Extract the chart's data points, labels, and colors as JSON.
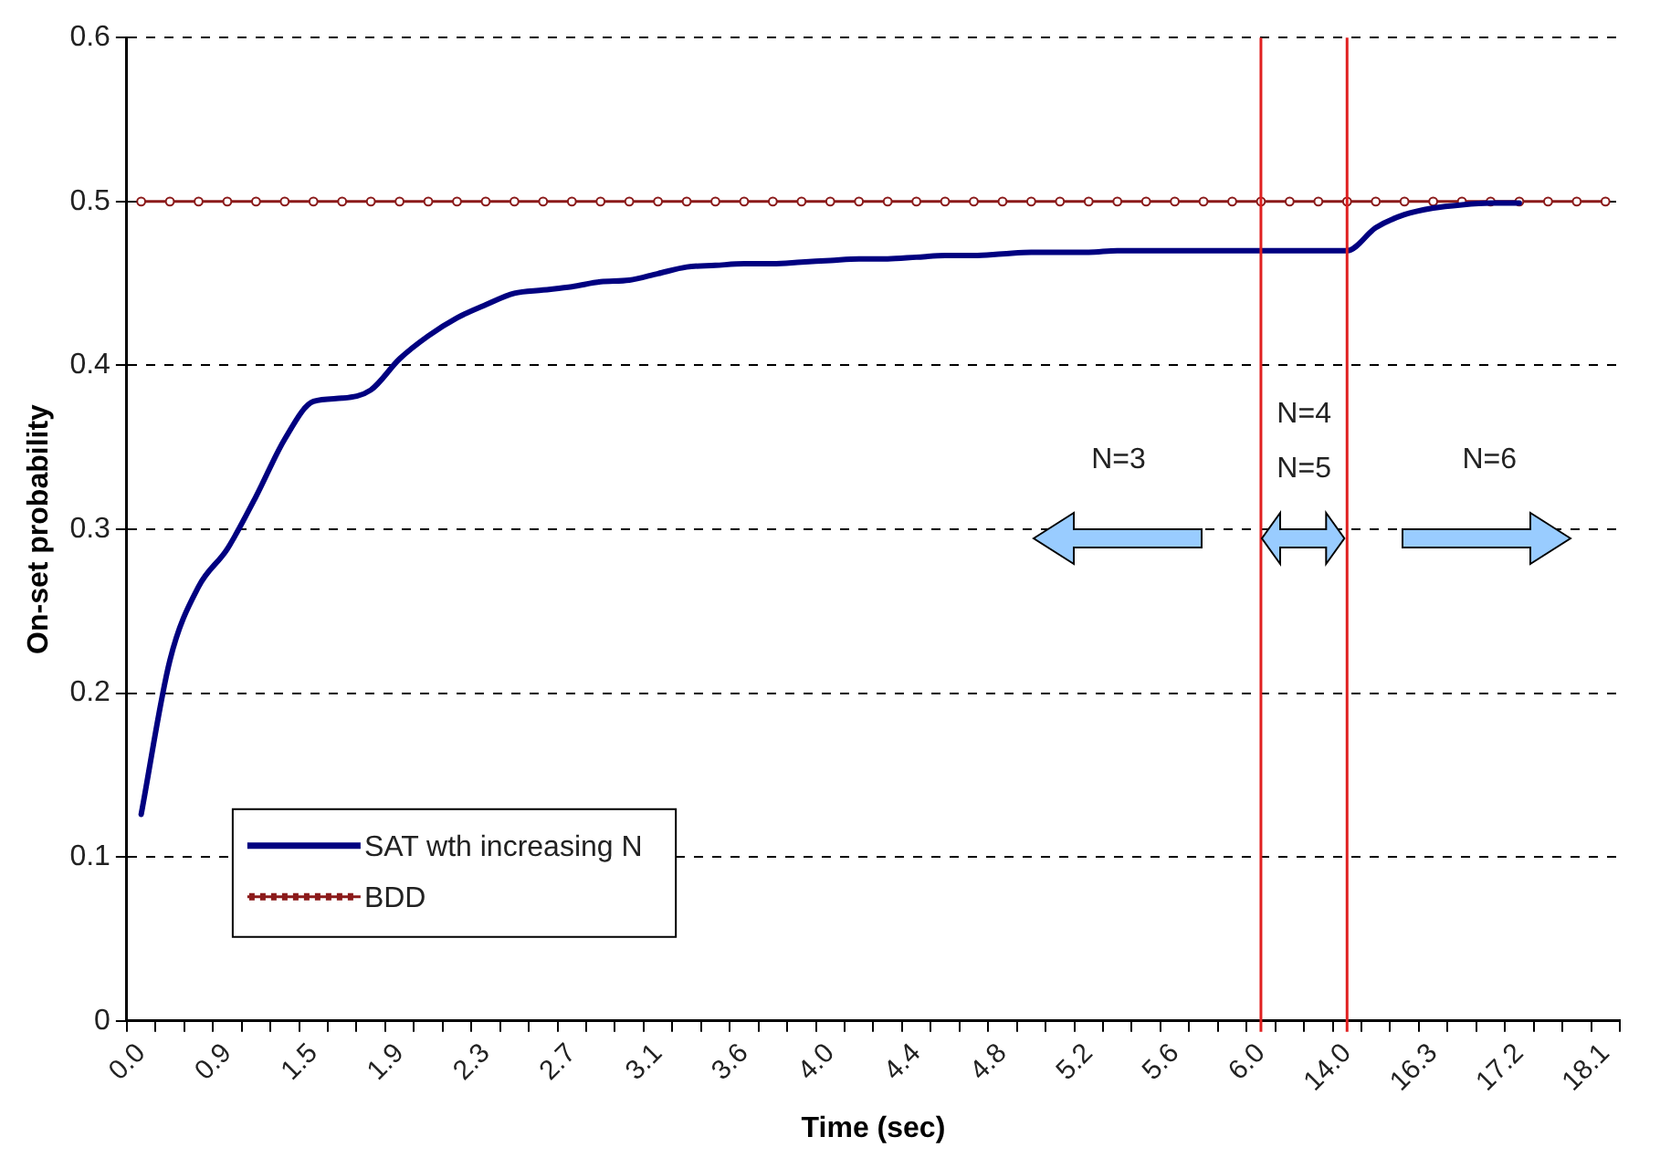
{
  "chart_data": {
    "type": "line",
    "xlabel": "Time (sec)",
    "ylabel": "On-set probability",
    "categories": [
      "0.0",
      null,
      null,
      "0.9",
      null,
      null,
      "1.5",
      null,
      null,
      "1.9",
      null,
      null,
      "2.3",
      null,
      null,
      "2.7",
      null,
      null,
      "3.1",
      null,
      null,
      "3.6",
      null,
      null,
      "4.0",
      null,
      null,
      "4.4",
      null,
      null,
      "4.8",
      null,
      null,
      "5.2",
      null,
      null,
      "5.6",
      null,
      null,
      "6.0",
      null,
      null,
      "14.0",
      null,
      null,
      "16.3",
      null,
      null,
      "17.2",
      null,
      null,
      "18.1"
    ],
    "series": [
      {
        "name": "SAT wth increasing N",
        "color": "#000080",
        "marker": "none",
        "values": [
          0.126,
          0.22,
          0.265,
          0.288,
          0.32,
          0.355,
          0.378,
          0.38,
          0.385,
          0.404,
          0.418,
          0.429,
          0.437,
          0.444,
          0.446,
          0.448,
          0.451,
          0.452,
          0.456,
          0.46,
          0.461,
          0.462,
          0.462,
          0.463,
          0.464,
          0.465,
          0.465,
          0.466,
          0.467,
          0.467,
          0.468,
          0.469,
          0.469,
          0.469,
          0.47,
          0.47,
          0.47,
          0.47,
          0.47,
          0.47,
          0.47,
          0.47,
          0.47,
          0.484,
          0.492,
          0.496,
          0.498,
          0.499,
          0.499,
          null,
          null,
          null
        ]
      },
      {
        "name": "BDD",
        "color": "#8b1a1a",
        "marker": "circle",
        "values": [
          0.5,
          0.5,
          0.5,
          0.5,
          0.5,
          0.5,
          0.5,
          0.5,
          0.5,
          0.5,
          0.5,
          0.5,
          0.5,
          0.5,
          0.5,
          0.5,
          0.5,
          0.5,
          0.5,
          0.5,
          0.5,
          0.5,
          0.5,
          0.5,
          0.5,
          0.5,
          0.5,
          0.5,
          0.5,
          0.5,
          0.5,
          0.5,
          0.5,
          0.5,
          0.5,
          0.5,
          0.5,
          0.5,
          0.5,
          0.5,
          0.5,
          0.5,
          0.5,
          0.5,
          0.5,
          0.5,
          0.5,
          0.5,
          0.5,
          0.5,
          0.5,
          0.5
        ]
      }
    ],
    "ylim": [
      0,
      0.6
    ],
    "yticks": [
      0,
      0.1,
      0.2,
      0.3,
      0.4,
      0.5,
      0.6
    ],
    "grid": "y",
    "legend": "bottom left",
    "ref_lines": [
      {
        "axis": "x",
        "value": "6.0",
        "color": "#e02020"
      },
      {
        "axis": "x",
        "value": "14.0",
        "color": "#e02020"
      }
    ],
    "annotations": [
      "N=3",
      "N=4",
      "N=5",
      "N=6"
    ]
  }
}
